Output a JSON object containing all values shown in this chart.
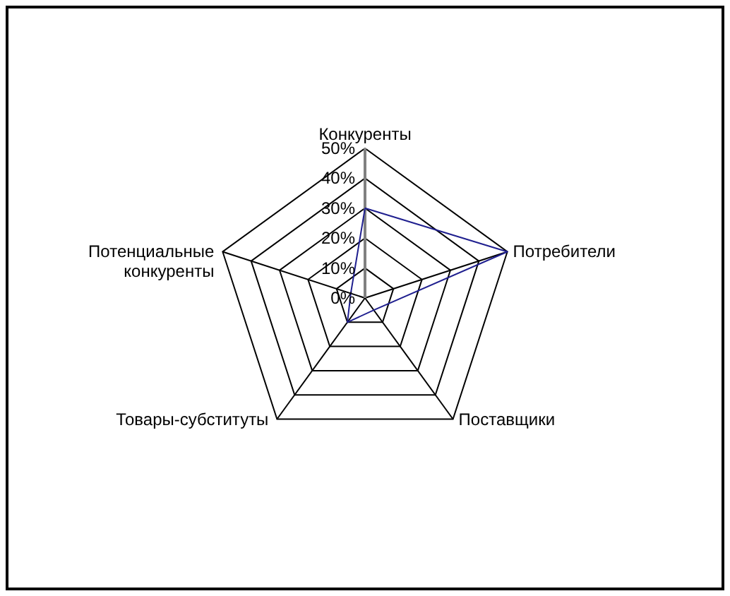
{
  "chart_data": {
    "type": "radar",
    "categories": [
      "Конкуренты",
      "Потребители",
      "Поставщики",
      "Товары-субституты",
      "Потенциальные конкуренты"
    ],
    "series": [
      {
        "color": "#1f1f8f",
        "values": [
          30,
          50,
          5,
          10,
          5
        ]
      }
    ],
    "ylim": [
      0,
      50
    ],
    "yticks": [
      {
        "value": 0,
        "label": "0%"
      },
      {
        "value": 10,
        "label": "10%"
      },
      {
        "value": 20,
        "label": "20%"
      },
      {
        "value": 30,
        "label": "30%"
      },
      {
        "value": 40,
        "label": "40%"
      },
      {
        "value": 50,
        "label": "50%"
      }
    ],
    "grid": true
  }
}
